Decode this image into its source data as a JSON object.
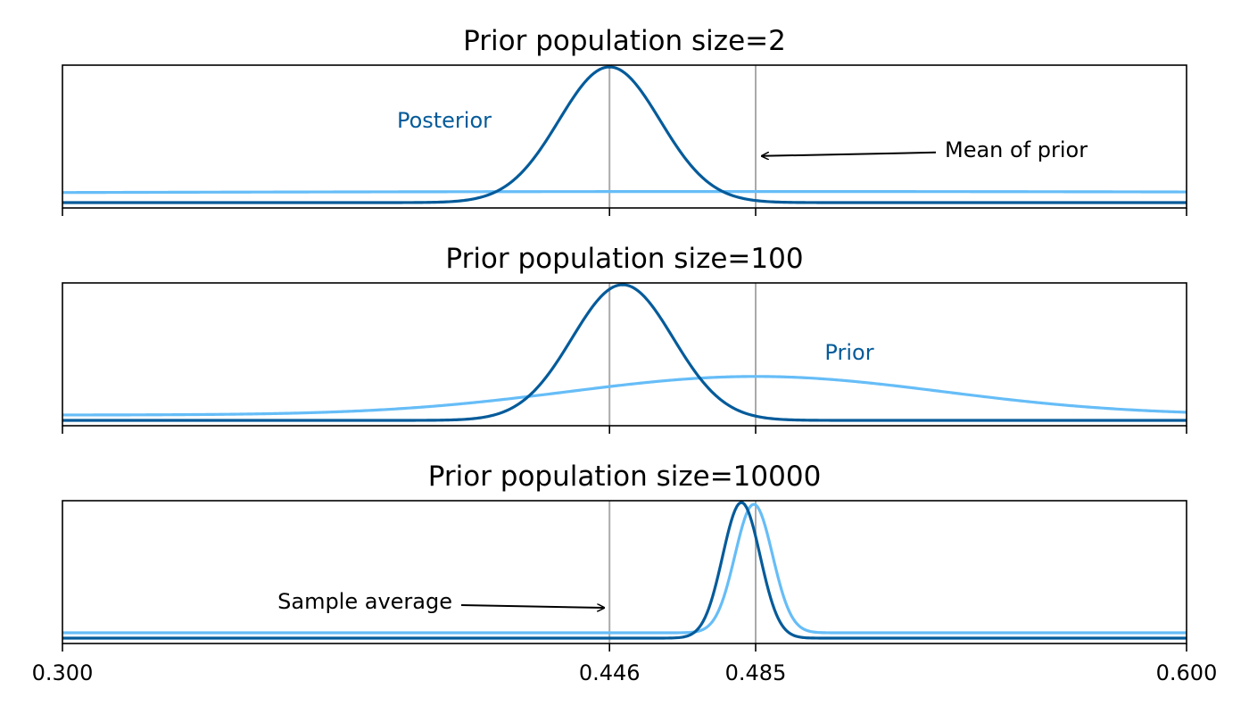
{
  "colors": {
    "posterior": "#045b9a",
    "prior": "#66bdf7",
    "vline": "#aaaaaa",
    "axis": "#000000"
  },
  "chart_data": [
    {
      "type": "line",
      "title": "Prior population size=2",
      "xlim": [
        0.3,
        0.6
      ],
      "x_ticks": [
        0.3,
        0.446,
        0.485,
        0.6
      ],
      "x_tick_labels": [
        "",
        "",
        "",
        ""
      ],
      "vlines": [
        0.446,
        0.485
      ],
      "y_axis_visible": false,
      "series": [
        {
          "name": "Posterior",
          "kind": "normal",
          "mean": 0.446,
          "sd": 0.0135,
          "peak": 0.95
        },
        {
          "name": "Prior",
          "kind": "normal",
          "mean": 0.485,
          "sd": 0.3,
          "peak": 0.04
        }
      ],
      "annotations": [
        {
          "text": "Posterior",
          "series": "Posterior",
          "at_x": 0.4,
          "at_y": 0.45,
          "type": "series-label"
        },
        {
          "text": "Mean of prior",
          "arrow_to_x": 0.485,
          "arrow_to_y": 0.37,
          "text_x": 0.52,
          "text_y": 0.37,
          "type": "arrow"
        }
      ]
    },
    {
      "type": "line",
      "title": "Prior population size=100",
      "xlim": [
        0.3,
        0.6
      ],
      "x_ticks": [
        0.3,
        0.446,
        0.485,
        0.6
      ],
      "x_tick_labels": [
        "",
        "",
        "",
        ""
      ],
      "vlines": [
        0.446,
        0.485
      ],
      "y_axis_visible": false,
      "series": [
        {
          "name": "Posterior",
          "kind": "normal",
          "mean": 0.4495,
          "sd": 0.0135,
          "peak": 0.95
        },
        {
          "name": "Prior",
          "kind": "normal",
          "mean": 0.485,
          "sd": 0.05,
          "peak": 0.27
        }
      ],
      "annotations": [
        {
          "text": "Prior",
          "series": "Prior",
          "at_x": 0.51,
          "at_y": 0.4,
          "type": "series-label"
        }
      ]
    },
    {
      "type": "line",
      "title": "Prior population size=10000",
      "xlim": [
        0.3,
        0.6
      ],
      "x_ticks": [
        0.3,
        0.446,
        0.485,
        0.6
      ],
      "x_tick_labels": [
        "0.300",
        "0.446",
        "0.485",
        "0.600"
      ],
      "vlines": [
        0.446,
        0.485
      ],
      "y_axis_visible": false,
      "series": [
        {
          "name": "Posterior",
          "kind": "normal",
          "mean": 0.4812,
          "sd": 0.005,
          "peak": 0.95
        },
        {
          "name": "Prior",
          "kind": "normal",
          "mean": 0.4845,
          "sd": 0.005,
          "peak": 0.9
        }
      ],
      "annotations": [
        {
          "text": "Sample average",
          "arrow_to_x": 0.446,
          "arrow_to_y": 0.3,
          "text_x": 0.35,
          "text_y": 0.3,
          "type": "arrow"
        }
      ]
    }
  ]
}
